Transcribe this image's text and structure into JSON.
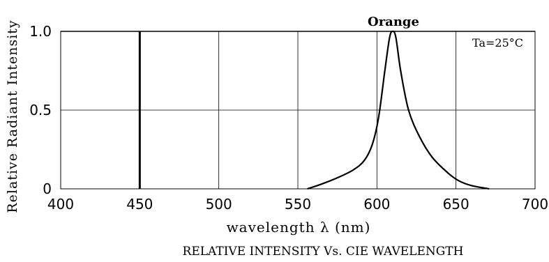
{
  "chart_data": {
    "type": "line",
    "title": "Orange",
    "annotation": "Ta=25°C",
    "xlabel": "wavelength λ (nm)",
    "ylabel": "Relative Radiant Intensity",
    "caption": "RELATIVE INTENSITY Vs. CIE WAVELENGTH",
    "xlim": [
      400,
      700
    ],
    "ylim": [
      0,
      1.0
    ],
    "x_ticks": [
      {
        "value": 400,
        "label": "400"
      },
      {
        "value": 450,
        "label": "450"
      },
      {
        "value": 500,
        "label": "500"
      },
      {
        "value": 550,
        "label": "550"
      },
      {
        "value": 600,
        "label": "600"
      },
      {
        "value": 650,
        "label": "650"
      },
      {
        "value": 700,
        "label": "700"
      }
    ],
    "y_ticks": [
      {
        "value": 0,
        "label": "0"
      },
      {
        "value": 0.5,
        "label": "0.5"
      },
      {
        "value": 1.0,
        "label": "1.0"
      }
    ],
    "grid": true,
    "series": [
      {
        "x": [
          556,
          565,
          575,
          585,
          592,
          597,
          601,
          605,
          608,
          610,
          612,
          615,
          620,
          627,
          635,
          645,
          652,
          660,
          671
        ],
        "y": [
          0.0,
          0.03,
          0.07,
          0.12,
          0.18,
          0.28,
          0.45,
          0.75,
          0.96,
          1.0,
          0.96,
          0.75,
          0.5,
          0.33,
          0.2,
          0.1,
          0.05,
          0.02,
          0.0
        ]
      }
    ],
    "reference_lines": [
      {
        "x": 450,
        "from": 0,
        "to": 1.0
      }
    ],
    "colors": {
      "line": "#000000",
      "grid": "#000000",
      "background": "#ffffff"
    }
  }
}
